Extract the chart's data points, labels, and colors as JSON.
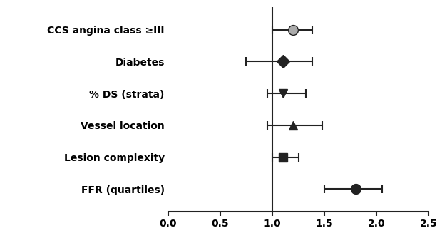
{
  "categories": [
    "CCS angina class ≥III",
    "Diabetes",
    "% DS (strata)",
    "Vessel location",
    "Lesion complexity",
    "FFR (quartiles)"
  ],
  "estimates": [
    1.2,
    1.1,
    1.1,
    1.2,
    1.1,
    1.8
  ],
  "ci_low": [
    1.0,
    0.75,
    0.95,
    0.95,
    1.0,
    1.5
  ],
  "ci_high": [
    1.38,
    1.38,
    1.32,
    1.48,
    1.25,
    2.05
  ],
  "markers": [
    "o",
    "D",
    "v",
    "^",
    "s",
    "o"
  ],
  "marker_colors": [
    "#aaaaaa",
    "#222222",
    "#222222",
    "#222222",
    "#222222",
    "#222222"
  ],
  "marker_sizes": [
    10,
    9,
    9,
    9,
    9,
    10
  ],
  "vline_x": 1.0,
  "xlim": [
    0.0,
    2.5
  ],
  "xticks": [
    0.0,
    0.5,
    1.0,
    1.5,
    2.0,
    2.5
  ],
  "xlabel": "",
  "linewidth": 1.5,
  "capsize": 4,
  "label_fontsize": 10,
  "tick_fontsize": 10,
  "background_color": "#ffffff"
}
